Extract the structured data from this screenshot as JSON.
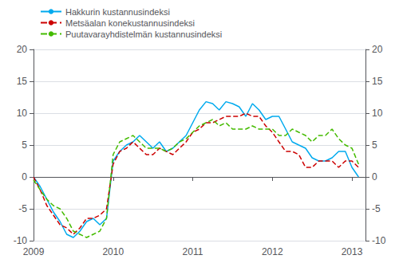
{
  "chart_data": {
    "type": "line",
    "x": [
      2009.0,
      2009.083,
      2009.167,
      2009.25,
      2009.333,
      2009.417,
      2009.5,
      2009.583,
      2009.667,
      2009.75,
      2009.833,
      2009.917,
      2010.0,
      2010.083,
      2010.167,
      2010.25,
      2010.333,
      2010.417,
      2010.5,
      2010.583,
      2010.667,
      2010.75,
      2010.833,
      2010.917,
      2011.0,
      2011.083,
      2011.167,
      2011.25,
      2011.333,
      2011.417,
      2011.5,
      2011.583,
      2011.667,
      2011.75,
      2011.833,
      2011.917,
      2012.0,
      2012.083,
      2012.167,
      2012.25,
      2012.333,
      2012.417,
      2012.5,
      2012.583,
      2012.667,
      2012.75,
      2012.833,
      2012.917,
      2013.0,
      2013.083
    ],
    "series": [
      {
        "name": "Hakkurin kustannusindeksi",
        "color": "#00aaee",
        "line_style": "solid",
        "values": [
          0.0,
          -1.5,
          -3.5,
          -5.5,
          -7.0,
          -9.0,
          -9.5,
          -8.5,
          -7.0,
          -6.5,
          -7.5,
          -6.5,
          2.5,
          4.0,
          5.0,
          5.5,
          6.5,
          5.5,
          4.5,
          5.5,
          4.0,
          4.5,
          5.5,
          6.5,
          8.5,
          10.5,
          11.8,
          11.5,
          10.5,
          11.8,
          11.5,
          11.0,
          9.5,
          11.5,
          10.5,
          9.0,
          9.5,
          9.5,
          7.5,
          5.5,
          5.0,
          4.5,
          3.0,
          2.5,
          2.5,
          3.0,
          4.0,
          4.0,
          1.5,
          0.0
        ]
      },
      {
        "name": "Metsäalan konekustannusindeksi",
        "color": "#cc0000",
        "line_style": "dashed",
        "values": [
          0.0,
          -2.0,
          -4.5,
          -6.0,
          -7.5,
          -8.0,
          -9.0,
          -8.0,
          -6.5,
          -6.5,
          -6.0,
          -5.0,
          2.0,
          4.0,
          4.5,
          5.5,
          4.5,
          3.5,
          3.5,
          4.5,
          4.0,
          3.5,
          4.5,
          5.5,
          7.0,
          7.5,
          8.5,
          8.5,
          9.0,
          9.5,
          9.5,
          9.5,
          10.0,
          9.5,
          9.5,
          8.0,
          7.0,
          5.5,
          4.0,
          4.0,
          3.5,
          1.5,
          1.5,
          2.5,
          2.5,
          2.5,
          1.5,
          2.5,
          2.5,
          1.5
        ]
      },
      {
        "name": "Puutavarayhdistelmän kustannusindeksi",
        "color": "#44bb00",
        "line_style": "dashed",
        "values": [
          -0.5,
          -2.0,
          -3.5,
          -4.5,
          -5.0,
          -6.5,
          -8.5,
          -9.0,
          -9.5,
          -9.0,
          -8.5,
          -6.5,
          3.5,
          5.5,
          6.0,
          6.5,
          5.5,
          4.5,
          4.5,
          4.5,
          4.0,
          4.5,
          5.5,
          6.0,
          7.0,
          8.0,
          8.5,
          9.0,
          8.0,
          8.5,
          7.5,
          7.5,
          7.5,
          8.0,
          7.5,
          7.5,
          7.5,
          6.5,
          6.5,
          7.5,
          7.0,
          6.5,
          5.5,
          6.5,
          6.5,
          7.5,
          6.0,
          5.0,
          4.5,
          2.0
        ]
      }
    ],
    "xlim": [
      2009.0,
      2013.17
    ],
    "xticks": [
      2009,
      2010,
      2011,
      2012,
      2013
    ],
    "ylim": [
      -10,
      20
    ],
    "yticks": [
      -10,
      -5,
      0,
      5,
      10,
      15,
      20
    ],
    "y2lim": [
      -10,
      20
    ],
    "y2ticks": [
      -10,
      -5,
      0,
      5,
      10,
      15,
      20
    ],
    "grid": true,
    "legend": "upper left"
  }
}
